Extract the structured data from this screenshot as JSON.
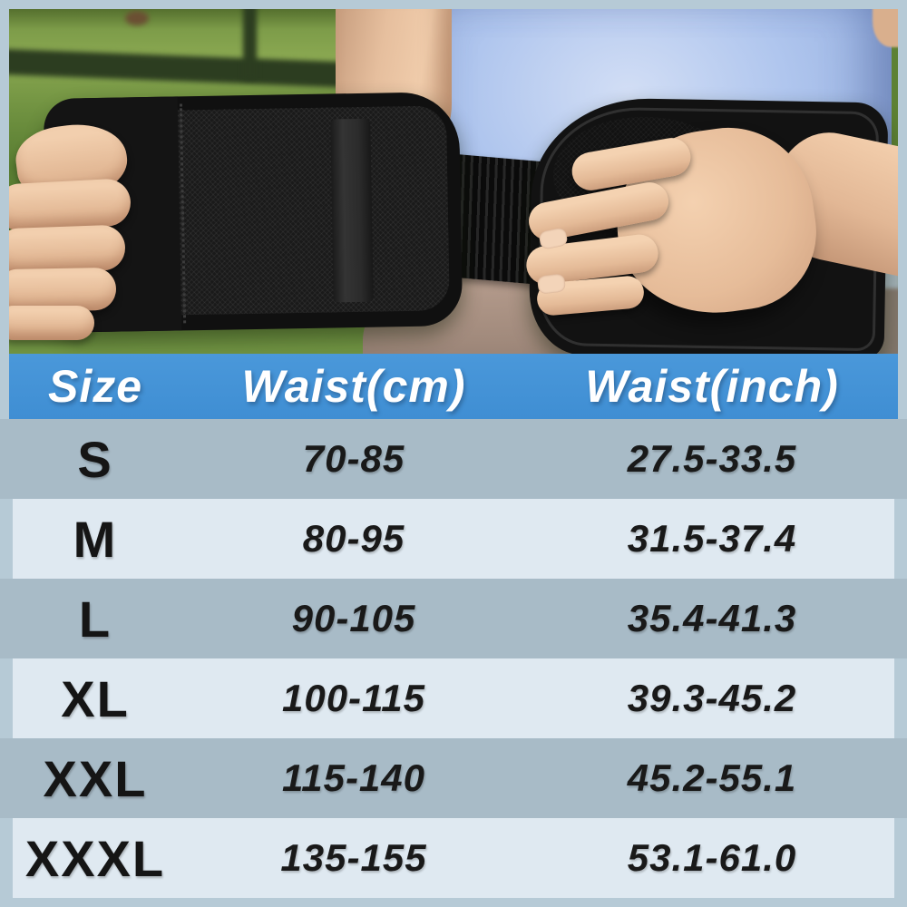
{
  "chart_data": {
    "type": "table",
    "title": "",
    "columns": [
      "Size",
      "Waist(cm)",
      "Waist(inch)"
    ],
    "rows": [
      [
        "S",
        "70-85",
        "27.5-33.5"
      ],
      [
        "M",
        "80-95",
        "31.5-37.4"
      ],
      [
        "L",
        "90-105",
        "35.4-41.3"
      ],
      [
        "XL",
        "100-115",
        "39.3-45.2"
      ],
      [
        "XXL",
        "115-140",
        "45.2-55.1"
      ],
      [
        "XXXL",
        "135-155",
        "53.1-61.0"
      ]
    ],
    "layout_hints": {
      "header_position": "top",
      "row_striping": "alternating gray-blue full-width and light inset panels",
      "grid": "off"
    }
  },
  "colors": {
    "header_bg": "#4493d6",
    "header_text": "#ffffff",
    "row_gray": "#a8bbc7",
    "row_light": "#dfe9f1",
    "frame": "#b6cad6",
    "cell_text": "#191919",
    "shirt_blue": "#a9c0ec",
    "pants_taupe": "#a18a7c",
    "belt_black": "#141414",
    "grass_green": "#6f9140",
    "skin": "#e6bf9e"
  }
}
